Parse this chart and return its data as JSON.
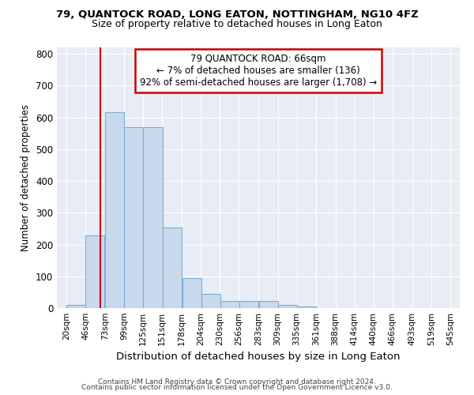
{
  "title": "79, QUANTOCK ROAD, LONG EATON, NOTTINGHAM, NG10 4FZ",
  "subtitle": "Size of property relative to detached houses in Long Eaton",
  "xlabel": "Distribution of detached houses by size in Long Eaton",
  "ylabel": "Number of detached properties",
  "footer1": "Contains HM Land Registry data © Crown copyright and database right 2024.",
  "footer2": "Contains public sector information licensed under the Open Government Licence v3.0.",
  "bin_labels": [
    "20sqm",
    "46sqm",
    "73sqm",
    "99sqm",
    "125sqm",
    "151sqm",
    "178sqm",
    "204sqm",
    "230sqm",
    "256sqm",
    "283sqm",
    "309sqm",
    "335sqm",
    "361sqm",
    "388sqm",
    "414sqm",
    "440sqm",
    "466sqm",
    "493sqm",
    "519sqm",
    "545sqm"
  ],
  "bar_values": [
    10,
    228,
    615,
    568,
    568,
    253,
    95,
    45,
    22,
    22,
    22,
    10,
    5,
    0,
    0,
    0,
    0,
    0,
    0,
    0
  ],
  "bar_color": "#c9d9ed",
  "bar_edge_color": "#7baed4",
  "property_line_x": 66,
  "annotation_line1": "79 QUANTOCK ROAD: 66sqm",
  "annotation_line2": "← 7% of detached houses are smaller (136)",
  "annotation_line3": "92% of semi-detached houses are larger (1,708) →",
  "annotation_box_color": "#ffffff",
  "annotation_box_edge": "#cc0000",
  "red_line_color": "#cc0000",
  "ylim": [
    0,
    820
  ],
  "xlim_min": 7,
  "xlim_max": 558,
  "plot_bg": "#e8ecf4",
  "fig_bg": "#ffffff",
  "grid_color": "#ffffff",
  "tick_positions": [
    20,
    46,
    73,
    99,
    125,
    151,
    178,
    204,
    230,
    256,
    283,
    309,
    335,
    361,
    388,
    414,
    440,
    466,
    493,
    519,
    545
  ],
  "bin_starts": [
    20,
    46,
    73,
    99,
    125,
    151,
    178,
    204,
    230,
    256,
    283,
    309,
    335,
    361,
    388,
    414,
    440,
    466,
    493,
    519
  ],
  "bin_width": 26.5
}
